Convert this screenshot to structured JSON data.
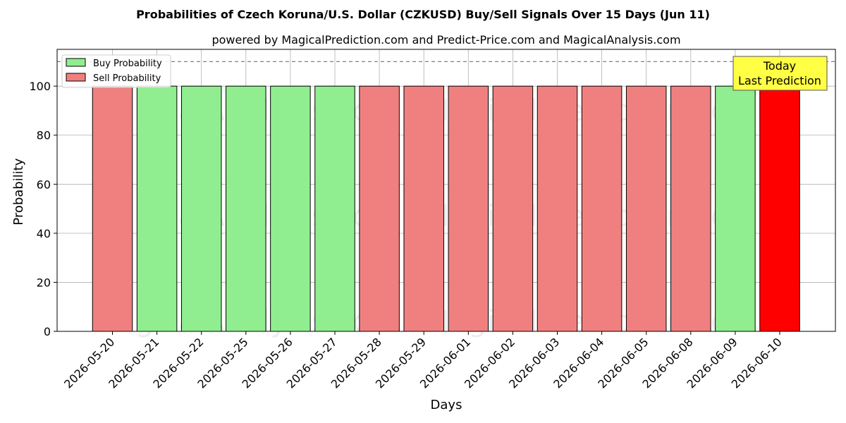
{
  "chart_data": {
    "type": "bar",
    "title": "Probabilities of Czech Koruna/U.S. Dollar (CZKUSD) Buy/Sell Signals Over 15 Days (Jun 11)",
    "subtitle": "powered by MagicalPrediction.com and Predict-Price.com and MagicalAnalysis.com",
    "xlabel": "Days",
    "ylabel": "Probability",
    "ylim": [
      0,
      115
    ],
    "yticks": [
      0,
      20,
      40,
      60,
      80,
      100
    ],
    "grid": true,
    "reference_line": 110,
    "legend_placement": "top-left",
    "legend": [
      {
        "name": "Buy Probability",
        "color": "#90ee90"
      },
      {
        "name": "Sell Probability",
        "color": "#f08080"
      }
    ],
    "categories": [
      "2026-05-20",
      "2026-05-21",
      "2026-05-22",
      "2026-05-25",
      "2026-05-26",
      "2026-05-27",
      "2026-05-28",
      "2026-05-29",
      "2026-06-01",
      "2026-06-02",
      "2026-06-03",
      "2026-06-04",
      "2026-06-05",
      "2026-06-08",
      "2026-06-09",
      "2026-06-10"
    ],
    "values": [
      100,
      100,
      100,
      100,
      100,
      100,
      100,
      100,
      100,
      100,
      100,
      100,
      100,
      100,
      100,
      100
    ],
    "signals": [
      "sell",
      "buy",
      "buy",
      "buy",
      "buy",
      "buy",
      "sell",
      "sell",
      "sell",
      "sell",
      "sell",
      "sell",
      "sell",
      "sell",
      "buy",
      "sell"
    ],
    "highlight_index": 15,
    "colors": {
      "buy": "#90ee90",
      "sell": "#f08080",
      "highlight": "#ff0000",
      "annotation_bg": "#ffff44"
    },
    "annotation": {
      "line1": "Today",
      "line2": "Last Prediction"
    },
    "watermarks": [
      "MagicalAnalysis.com",
      "MagicalPrediction.com"
    ]
  }
}
